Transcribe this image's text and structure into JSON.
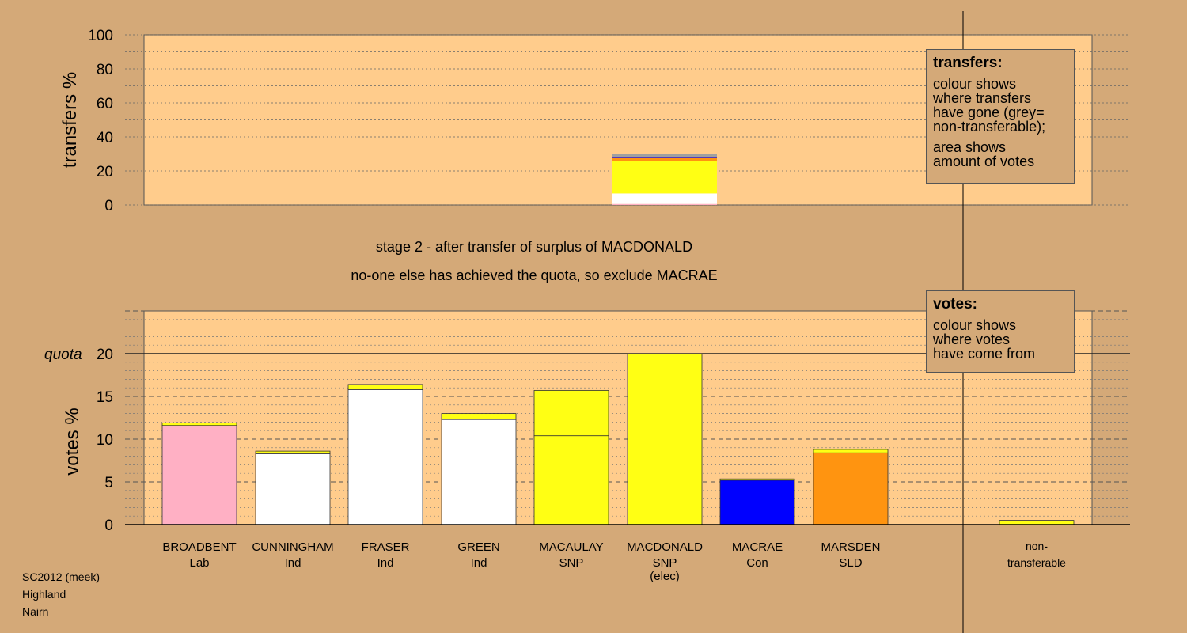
{
  "stage_text": {
    "line1": "stage 2 - after transfer of surplus of MACDONALD",
    "line2": "no-one else has achieved the quota, so exclude MACRAE"
  },
  "transfers_legend": {
    "title": "transfers:",
    "lines_a": [
      "colour shows",
      "where transfers",
      "have gone (grey=",
      "non-transferable);"
    ],
    "lines_b": [
      "area shows",
      "amount of votes"
    ]
  },
  "votes_legend": {
    "title": "votes:",
    "lines": [
      "colour shows",
      "where votes",
      "have come from"
    ]
  },
  "footer": {
    "lines": [
      "SC2012 (meek)",
      "Highland",
      "Nairn"
    ]
  },
  "colors": {
    "background": "#d4a978",
    "panel": "#ffcc8c",
    "Lab": "#ffb0c4",
    "Ind": "#ffffff",
    "SNP": "#ffff14",
    "Con": "#0000ff",
    "SLD": "#ff9410",
    "nontransferable": "#a0a0a0"
  },
  "chart_data": [
    {
      "type": "bar",
      "stacked": true,
      "ylabel": "transfers %",
      "ylim": [
        0,
        100
      ],
      "yticks": [
        0,
        20,
        40,
        60,
        80,
        100
      ],
      "bars": [
        {
          "candidate": "MACDONALD",
          "segments": [
            {
              "color": "Lab",
              "value": 0.6
            },
            {
              "color": "Ind",
              "value": 6.2
            },
            {
              "color": "SNP",
              "value": 19.0
            },
            {
              "color": "SLD",
              "value": 1.8
            },
            {
              "color": "Con",
              "value": 0.4
            },
            {
              "color": "nontransferable",
              "value": 2.0
            }
          ]
        }
      ]
    },
    {
      "type": "bar",
      "stacked": true,
      "ylabel": "votes %",
      "ylim": [
        0,
        25
      ],
      "yticks": [
        0,
        5,
        10,
        15,
        20
      ],
      "quota": {
        "label": "quota",
        "value": 20
      },
      "categories": [
        {
          "name": "BROADBENT",
          "party": "Lab",
          "note": "",
          "segments": [
            {
              "color": "Lab",
              "value": 11.6
            },
            {
              "color": "SNP",
              "value": 0.3
            }
          ]
        },
        {
          "name": "CUNNINGHAM",
          "party": "Ind",
          "note": "",
          "segments": [
            {
              "color": "Ind",
              "value": 8.3
            },
            {
              "color": "SNP",
              "value": 0.3
            }
          ]
        },
        {
          "name": "FRASER",
          "party": "Ind",
          "note": "",
          "segments": [
            {
              "color": "Ind",
              "value": 15.8
            },
            {
              "color": "SNP",
              "value": 0.6
            }
          ]
        },
        {
          "name": "GREEN",
          "party": "Ind",
          "note": "",
          "segments": [
            {
              "color": "Ind",
              "value": 12.3
            },
            {
              "color": "SNP",
              "value": 0.7
            }
          ]
        },
        {
          "name": "MACAULAY",
          "party": "SNP",
          "note": "",
          "segments": [
            {
              "color": "SNP",
              "value": 10.4
            },
            {
              "color": "SNP",
              "value": 5.3
            }
          ]
        },
        {
          "name": "MACDONALD",
          "party": "SNP",
          "note": "(elec)",
          "segments": [
            {
              "color": "SNP",
              "value": 20.0
            }
          ]
        },
        {
          "name": "MACRAE",
          "party": "Con",
          "note": "",
          "segments": [
            {
              "color": "Con",
              "value": 5.2
            },
            {
              "color": "SNP",
              "value": 0.15
            }
          ]
        },
        {
          "name": "MARSDEN",
          "party": "SLD",
          "note": "",
          "segments": [
            {
              "color": "SLD",
              "value": 8.4
            },
            {
              "color": "SNP",
              "value": 0.4
            }
          ]
        }
      ],
      "nontransferable": {
        "label_line1": "non-",
        "label_line2": "transferable",
        "segments": [
          {
            "color": "SNP",
            "value": 0.5
          }
        ]
      }
    }
  ]
}
